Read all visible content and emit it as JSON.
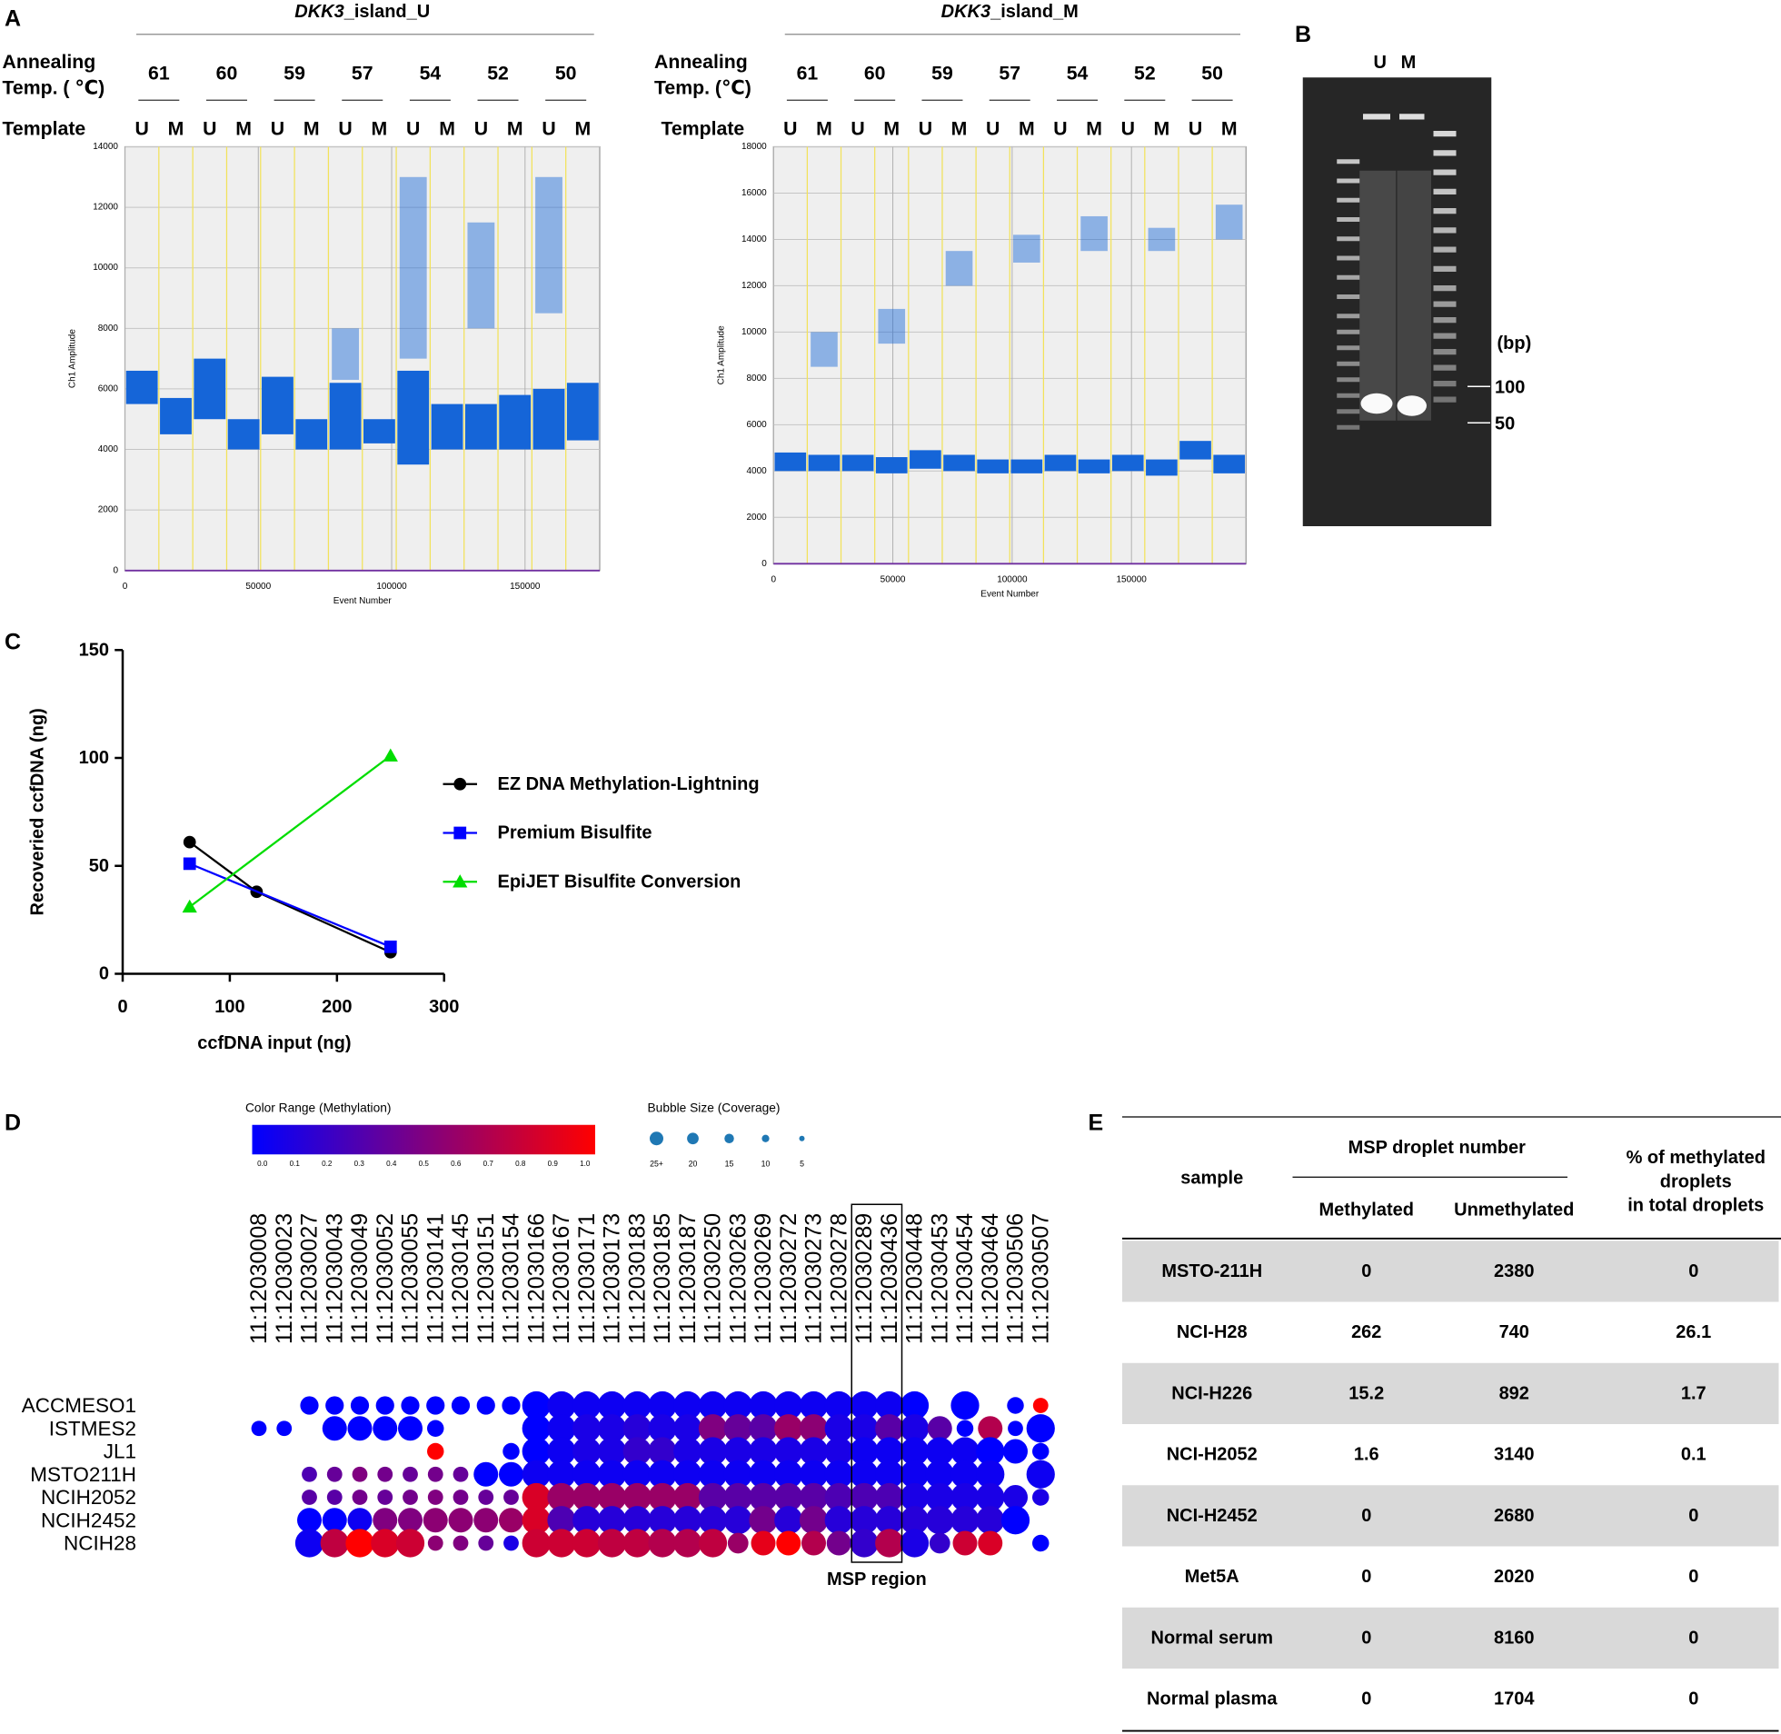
{
  "panel_labels": [
    "A",
    "B",
    "C",
    "D",
    "E"
  ],
  "chart_data": [
    {
      "type": "scatter",
      "gene": "DKK3",
      "title": "_island_U",
      "row_label_1": "Annealing",
      "row_label_2": "Temp. ( ℃)",
      "template_label": "Template",
      "categories": [
        "61",
        "60",
        "59",
        "57",
        "54",
        "52",
        "50"
      ],
      "templates": [
        "U",
        "M"
      ],
      "wells": [
        {
          "negative": [
            5500,
            6600
          ],
          "positive": null
        },
        {
          "negative": [
            4500,
            5700
          ],
          "positive": null
        },
        {
          "negative": [
            5000,
            7000
          ],
          "positive": null
        },
        {
          "negative": [
            4000,
            5000
          ],
          "positive": null
        },
        {
          "negative": [
            4500,
            6400
          ],
          "positive": null
        },
        {
          "negative": [
            4000,
            5000
          ],
          "positive": null
        },
        {
          "negative": [
            4000,
            6200
          ],
          "positive": [
            6300,
            8000
          ]
        },
        {
          "negative": [
            4200,
            5000
          ],
          "positive": null
        },
        {
          "negative": [
            3500,
            6600
          ],
          "positive": [
            7000,
            13000
          ]
        },
        {
          "negative": [
            4000,
            5500
          ],
          "positive": null
        },
        {
          "negative": [
            4000,
            5500
          ],
          "positive": [
            8000,
            11500
          ]
        },
        {
          "negative": [
            4000,
            5800
          ],
          "positive": null
        },
        {
          "negative": [
            4000,
            6000
          ],
          "positive": [
            8500,
            13000
          ]
        },
        {
          "negative": [
            4300,
            6200
          ],
          "positive": null
        }
      ],
      "x_label": "Event Number",
      "y_label": "Ch1 Amplitude",
      "color": "#1565d8",
      "xlim": [
        0,
        178000
      ],
      "xticks": [
        0,
        50000,
        100000,
        150000
      ],
      "ylim": [
        0,
        14000
      ],
      "yticks": [
        0,
        2000,
        4000,
        6000,
        8000,
        10000,
        12000,
        14000
      ],
      "grid": true
    },
    {
      "type": "scatter",
      "gene": "DKK3",
      "title": "_island_M",
      "row_label_1": "Annealing",
      "row_label_2": "Temp. (℃)",
      "template_label": "Template",
      "categories": [
        "61",
        "60",
        "59",
        "57",
        "54",
        "52",
        "50"
      ],
      "templates": [
        "U",
        "M"
      ],
      "wells": [
        {
          "negative": [
            4000,
            4800
          ],
          "positive": null
        },
        {
          "negative": [
            4000,
            4700
          ],
          "positive": [
            8500,
            10000
          ]
        },
        {
          "negative": [
            4000,
            4700
          ],
          "positive": null
        },
        {
          "negative": [
            3900,
            4600
          ],
          "positive": [
            9500,
            11000
          ]
        },
        {
          "negative": [
            4100,
            4900
          ],
          "positive": null
        },
        {
          "negative": [
            4000,
            4700
          ],
          "positive": [
            12000,
            13500
          ]
        },
        {
          "negative": [
            3900,
            4500
          ],
          "positive": null
        },
        {
          "negative": [
            3900,
            4500
          ],
          "positive": [
            13000,
            14200
          ]
        },
        {
          "negative": [
            4000,
            4700
          ],
          "positive": null
        },
        {
          "negative": [
            3900,
            4500
          ],
          "positive": [
            13500,
            15000
          ]
        },
        {
          "negative": [
            4000,
            4700
          ],
          "positive": null
        },
        {
          "negative": [
            3800,
            4500
          ],
          "positive": [
            13500,
            14500
          ]
        },
        {
          "negative": [
            4500,
            5300
          ],
          "positive": null
        },
        {
          "negative": [
            3900,
            4700
          ],
          "positive": [
            14000,
            15500
          ]
        }
      ],
      "x_label": "Event Number",
      "y_label": "Ch1 Amplitude",
      "color": "#1565d8",
      "xlim": [
        0,
        198000
      ],
      "xticks": [
        0,
        50000,
        100000,
        150000
      ],
      "ylim": [
        0,
        18000
      ],
      "yticks": [
        0,
        2000,
        4000,
        6000,
        8000,
        10000,
        12000,
        14000,
        16000,
        18000
      ],
      "grid": true
    },
    {
      "type": "line",
      "x_label": "ccfDNA input (ng)",
      "y_label": "Recoveried ccfDNA (ng)",
      "xlim": [
        0,
        300
      ],
      "xticks": [
        0,
        100,
        200,
        300
      ],
      "ylim": [
        0,
        150
      ],
      "yticks": [
        0,
        50,
        100,
        150
      ],
      "series": [
        {
          "name": "EZ DNA Methylation-Lightning",
          "color": "#000000",
          "marker": "circle",
          "x": [
            62.5,
            125,
            250
          ],
          "values": [
            61,
            38,
            10
          ]
        },
        {
          "name": "Premium Bisulfite",
          "color": "#0000ff",
          "marker": "square",
          "x": [
            62.5,
            250
          ],
          "values": [
            51,
            12.5
          ]
        },
        {
          "name": "EpiJET Bisulfite Conversion",
          "color": "#00dd00",
          "marker": "triangle",
          "x": [
            62.5,
            250
          ],
          "values": [
            31,
            101
          ]
        }
      ]
    },
    {
      "type": "bubble",
      "color_title": "Color Range (Methylation)",
      "color_ticks": [
        {
          "value": 0,
          "label": "0.0"
        },
        0.1,
        0.2,
        0.3,
        0.4,
        0.5,
        0.6,
        0.7,
        0.8,
        0.9,
        {
          "value": 1,
          "label": "1.0"
        }
      ],
      "size_title": "Bubble Size (Coverage)",
      "size_ticks": [
        {
          "value": 25,
          "label": "25+"
        },
        20,
        15,
        10,
        5
      ],
      "annotation": "MSP region",
      "categories": [
        "11:12030008",
        "11:12030023",
        "11:12030027",
        "11:12030043",
        "11:12030049",
        "11:12030052",
        "11:12030055",
        "11:12030141",
        "11:12030145",
        "11:12030151",
        "11:12030154",
        "11:12030166",
        "11:12030167",
        "11:12030171",
        "11:12030173",
        "11:12030183",
        "11:12030185",
        "11:12030187",
        "11:12030250",
        "11:12030263",
        "11:12030269",
        "11:12030272",
        "11:12030273",
        "11:12030278",
        "11:12030289",
        "11:12030436",
        "11:12030448",
        "11:12030453",
        "11:12030454",
        "11:12030464",
        "11:12030506",
        "11:12030507"
      ],
      "series": [
        {
          "name": "ACCMESO1",
          "values": [
            null,
            null,
            0,
            0,
            0,
            0,
            0,
            0,
            0,
            0,
            0,
            0,
            0.05,
            0.05,
            0.05,
            0.05,
            0.05,
            0.05,
            0.05,
            0.05,
            0.05,
            0.05,
            0.05,
            0.05,
            0.05,
            0.05,
            0,
            null,
            0,
            null,
            0,
            1
          ],
          "coverage": [
            null,
            null,
            12,
            12,
            12,
            12,
            12,
            12,
            12,
            12,
            12,
            25,
            25,
            25,
            25,
            25,
            25,
            25,
            25,
            25,
            25,
            25,
            25,
            25,
            25,
            25,
            25,
            null,
            25,
            null,
            10,
            8
          ]
        },
        {
          "name": "ISTMES2",
          "values": [
            0,
            0,
            null,
            0,
            0,
            0,
            0,
            0,
            null,
            null,
            null,
            0,
            0.05,
            0.1,
            0.1,
            0.15,
            0.1,
            0.1,
            0.5,
            0.4,
            0.35,
            0.6,
            0.55,
            0.1,
            0.1,
            0.35,
            0.1,
            0.35,
            0,
            0.7,
            0,
            0
          ],
          "coverage": [
            8,
            8,
            null,
            20,
            20,
            20,
            20,
            10,
            null,
            null,
            null,
            25,
            25,
            25,
            25,
            25,
            25,
            25,
            25,
            25,
            25,
            25,
            25,
            25,
            25,
            25,
            25,
            20,
            10,
            20,
            8,
            25
          ]
        },
        {
          "name": "JL1",
          "values": [
            null,
            null,
            null,
            null,
            null,
            null,
            null,
            1,
            null,
            null,
            0,
            0,
            0.05,
            0.1,
            0.1,
            0.2,
            0.2,
            0.1,
            0.1,
            0.1,
            0.1,
            0.1,
            0.1,
            0.1,
            0.05,
            0.05,
            0.05,
            0.05,
            0.05,
            0,
            0,
            0
          ],
          "coverage": [
            null,
            null,
            null,
            null,
            null,
            null,
            null,
            10,
            null,
            null,
            10,
            25,
            25,
            25,
            25,
            25,
            25,
            25,
            25,
            25,
            25,
            25,
            25,
            25,
            25,
            25,
            25,
            25,
            25,
            25,
            20,
            10
          ]
        },
        {
          "name": "MSTO211H",
          "values": [
            null,
            null,
            0.3,
            0.4,
            0.5,
            0.45,
            0.4,
            0.45,
            0.4,
            0,
            0,
            0.05,
            0.05,
            0.05,
            0.05,
            0.05,
            0.05,
            0.05,
            0.05,
            0.05,
            0.05,
            0.05,
            0.05,
            0.05,
            0.05,
            0.05,
            0.05,
            0.05,
            0.05,
            0.05,
            null,
            0.05
          ],
          "coverage": [
            null,
            null,
            8,
            8,
            8,
            8,
            8,
            8,
            8,
            20,
            20,
            25,
            25,
            25,
            25,
            25,
            25,
            25,
            25,
            25,
            25,
            25,
            25,
            25,
            25,
            25,
            25,
            25,
            25,
            25,
            null,
            25
          ]
        },
        {
          "name": "NCIH2052",
          "values": [
            null,
            null,
            0.35,
            0.35,
            0.45,
            0.4,
            0.45,
            0.5,
            0.45,
            0.4,
            0.4,
            0.85,
            0.6,
            0.6,
            0.6,
            0.6,
            0.6,
            0.6,
            0.35,
            0.35,
            0.35,
            0.35,
            0.35,
            0.3,
            0.3,
            0.3,
            0.1,
            0.1,
            0.1,
            0.1,
            0.1,
            0.1
          ],
          "coverage": [
            null,
            null,
            8,
            8,
            8,
            8,
            8,
            8,
            8,
            8,
            8,
            25,
            25,
            25,
            25,
            25,
            25,
            25,
            25,
            25,
            25,
            25,
            25,
            25,
            25,
            25,
            25,
            25,
            25,
            25,
            20,
            10
          ]
        },
        {
          "name": "NCIH2452",
          "values": [
            null,
            null,
            0,
            0,
            0.05,
            0.5,
            0.5,
            0.55,
            0.55,
            0.55,
            0.6,
            0.85,
            0.3,
            0.15,
            0.15,
            0.15,
            0.15,
            0.15,
            0.15,
            0.15,
            0.45,
            0.15,
            0.45,
            0.15,
            0.15,
            0.15,
            0.15,
            0.15,
            0.15,
            0.15,
            0,
            null
          ],
          "coverage": [
            null,
            null,
            20,
            20,
            20,
            20,
            20,
            20,
            20,
            20,
            20,
            25,
            25,
            25,
            25,
            25,
            25,
            25,
            25,
            25,
            25,
            25,
            25,
            25,
            25,
            25,
            25,
            25,
            25,
            25,
            25,
            null
          ]
        },
        {
          "name": "NCIH28",
          "values": [
            null,
            null,
            0.05,
            0.75,
            1,
            0.85,
            0.8,
            0.55,
            0.5,
            0.4,
            0.1,
            0.8,
            0.8,
            0.8,
            0.75,
            0.75,
            0.7,
            0.7,
            0.75,
            0.6,
            0.9,
            1,
            0.7,
            0.45,
            0.2,
            0.7,
            0.1,
            0.2,
            0.8,
            0.85,
            null,
            0
          ],
          "coverage": [
            null,
            null,
            25,
            25,
            25,
            25,
            25,
            8,
            8,
            8,
            8,
            25,
            25,
            25,
            25,
            25,
            25,
            25,
            25,
            15,
            20,
            20,
            20,
            20,
            25,
            25,
            25,
            15,
            20,
            20,
            null,
            10
          ]
        }
      ]
    }
  ],
  "gel": {
    "lanes": [
      "U",
      "M"
    ],
    "unit": "(bp)",
    "markers": [
      100,
      50
    ]
  },
  "table": {
    "header": {
      "sample": "sample",
      "group": "MSP droplet number",
      "methylated": "Methylated",
      "unmethylated": "Unmethylated",
      "percent": [
        "% of methylated",
        "droplets",
        "in total droplets"
      ]
    },
    "rows": [
      [
        "MSTO-211H",
        0,
        2380,
        0
      ],
      [
        "NCI-H28",
        262,
        740,
        26.1
      ],
      [
        "NCI-H226",
        15.2,
        892,
        1.7
      ],
      [
        "NCI-H2052",
        1.6,
        3140,
        0.1
      ],
      [
        "NCI-H2452",
        0,
        2680,
        0
      ],
      [
        "Met5A",
        0,
        2020,
        0
      ],
      [
        "Normal serum",
        0,
        8160,
        0
      ],
      [
        "Normal plasma",
        0,
        1704,
        0
      ]
    ]
  }
}
